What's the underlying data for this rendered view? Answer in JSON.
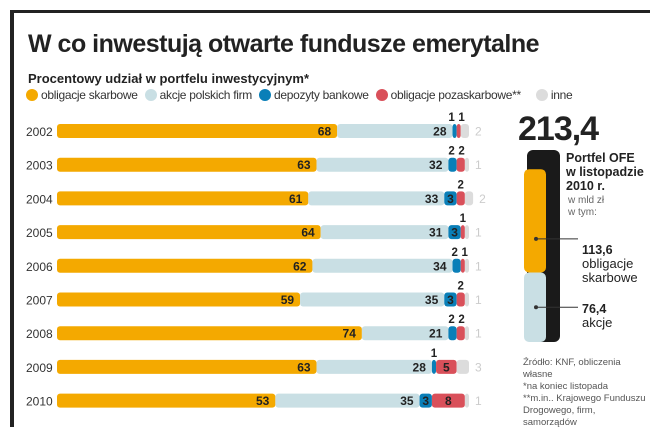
{
  "title": "W co inwestują otwarte fundusze emerytalne",
  "chart_data": {
    "type": "bar",
    "stacked": true,
    "orientation": "horizontal",
    "subtitle": "Procentowy udział w portfelu inwestycyjnym*",
    "legend_position": "top",
    "categories": [
      "2002",
      "2003",
      "2004",
      "2005",
      "2006",
      "2007",
      "2008",
      "2009",
      "2010"
    ],
    "series": [
      {
        "name": "obligacje skarbowe",
        "color": "#f4a900",
        "values": [
          68,
          63,
          61,
          64,
          62,
          59,
          74,
          63,
          53
        ]
      },
      {
        "name": "akcje polskich firm",
        "color": "#c9dfe4",
        "values": [
          28,
          32,
          33,
          31,
          34,
          35,
          21,
          28,
          35
        ]
      },
      {
        "name": "depozyty bankowe",
        "color": "#0a7fb8",
        "values": [
          1,
          2,
          3,
          3,
          2,
          3,
          2,
          1,
          3
        ]
      },
      {
        "name": "obligacje pozaskarbowe**",
        "color": "#d9505a",
        "values": [
          1,
          2,
          2,
          1,
          1,
          2,
          2,
          5,
          8
        ]
      },
      {
        "name": "inne",
        "color": "#dcdcdc",
        "values": [
          2,
          1,
          2,
          1,
          1,
          1,
          1,
          3,
          1
        ]
      }
    ]
  },
  "summary": {
    "total": "213,4",
    "label_lines": [
      "Portfel OFE",
      "w listopadzie",
      "2010 r."
    ],
    "unit_lines": [
      "w mld zł",
      "w tym:"
    ],
    "items": [
      {
        "value": "113,6",
        "label_lines": [
          "obligacje",
          "skarbowe"
        ],
        "color": "#f4a900",
        "amount": 113.6
      },
      {
        "value": "76,4",
        "label_lines": [
          "akcje"
        ],
        "color": "#c9dfe4",
        "amount": 76.4
      }
    ]
  },
  "notes": [
    "Źródło: KNF, obliczenia własne",
    "*na koniec listopada",
    "**m.in.. Krajowego Funduszu",
    "Drogowego, firm, samorządów"
  ]
}
